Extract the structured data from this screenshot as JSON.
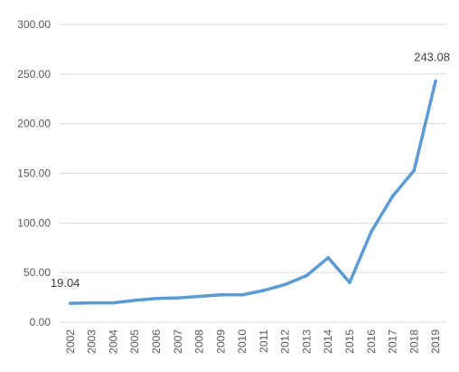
{
  "chart_data": {
    "type": "line",
    "title": "",
    "xlabel": "",
    "ylabel": "",
    "ylim": [
      0,
      300
    ],
    "yticks": [
      "0.00",
      "50.00",
      "100.00",
      "150.00",
      "200.00",
      "250.00",
      "300.00"
    ],
    "ytick_values": [
      0,
      50,
      100,
      150,
      200,
      250,
      300
    ],
    "grid": true,
    "legend": "none",
    "categories": [
      "2002",
      "2003",
      "2004",
      "2005",
      "2006",
      "2007",
      "2008",
      "2009",
      "2010",
      "2011",
      "2012",
      "2013",
      "2014",
      "2015",
      "2016",
      "2017",
      "2018",
      "2019"
    ],
    "series": [
      {
        "color": "#5b9bd5",
        "values": [
          19.04,
          19.5,
          19.5,
          22,
          24,
          24.5,
          26,
          27.5,
          27.5,
          32,
          38,
          47,
          65,
          40,
          91,
          127,
          153,
          243.08
        ]
      }
    ],
    "data_labels": [
      {
        "index": 0,
        "text": "19.04"
      },
      {
        "index": 17,
        "text": "243.08"
      }
    ]
  }
}
